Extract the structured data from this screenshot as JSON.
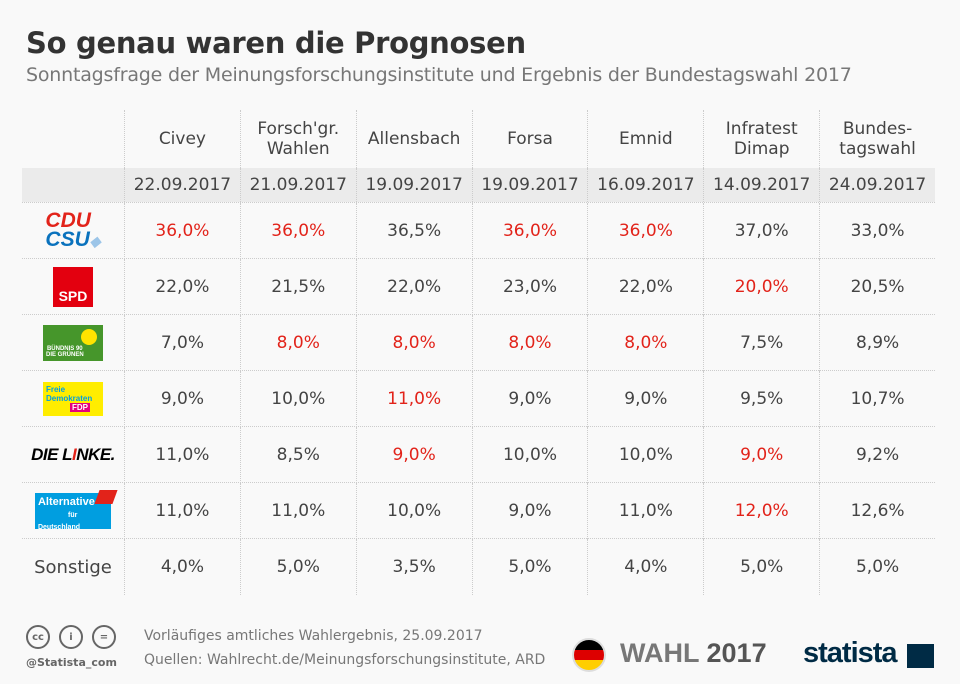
{
  "header": {
    "title": "So genau waren die Prognosen",
    "subtitle": "Sonntagsfrage der Meinungsforschungsinstitute und Ergebnis der Bundestagswahl 2017"
  },
  "chart_data": {
    "type": "table",
    "columns": [
      {
        "name": "Civey",
        "date": "22.09.2017"
      },
      {
        "name": "Forsch'gr. Wahlen",
        "date": "21.09.2017"
      },
      {
        "name": "Allensbach",
        "date": "19.09.2017"
      },
      {
        "name": "Forsa",
        "date": "19.09.2017"
      },
      {
        "name": "Emnid",
        "date": "16.09.2017"
      },
      {
        "name": "Infratest Dimap",
        "date": "14.09.2017"
      },
      {
        "name": "Bundes-tagswahl",
        "date": "24.09.2017"
      }
    ],
    "rows": [
      {
        "party": "CDU CSU",
        "logo": "cdu",
        "values": [
          "36,0%",
          "36,0%",
          "36,5%",
          "36,0%",
          "36,0%",
          "37,0%",
          "33,0%"
        ],
        "highlight": [
          0,
          1,
          3,
          4
        ]
      },
      {
        "party": "SPD",
        "logo": "spd",
        "values": [
          "22,0%",
          "21,5%",
          "22,0%",
          "23,0%",
          "22,0%",
          "20,0%",
          "20,5%"
        ],
        "highlight": [
          5
        ]
      },
      {
        "party": "Bündnis 90 Die Grünen",
        "logo": "gruene",
        "values": [
          "7,0%",
          "8,0%",
          "8,0%",
          "8,0%",
          "8,0%",
          "7,5%",
          "8,9%"
        ],
        "highlight": [
          1,
          2,
          3,
          4
        ]
      },
      {
        "party": "Freie Demokraten FDP",
        "logo": "fdp",
        "values": [
          "9,0%",
          "10,0%",
          "11,0%",
          "9,0%",
          "9,0%",
          "9,5%",
          "10,7%"
        ],
        "highlight": [
          2
        ]
      },
      {
        "party": "DIE LINKE.",
        "logo": "linke",
        "values": [
          "11,0%",
          "8,5%",
          "9,0%",
          "10,0%",
          "10,0%",
          "9,0%",
          "9,2%"
        ],
        "highlight": [
          2,
          5
        ]
      },
      {
        "party": "Alternative für Deutschland",
        "logo": "afd",
        "values": [
          "11,0%",
          "11,0%",
          "10,0%",
          "9,0%",
          "11,0%",
          "12,0%",
          "12,6%"
        ],
        "highlight": [
          5
        ]
      },
      {
        "party": "Sonstige",
        "logo": "",
        "values": [
          "4,0%",
          "5,0%",
          "3,5%",
          "5,0%",
          "4,0%",
          "5,0%",
          "5,0%"
        ],
        "highlight": []
      }
    ],
    "highlight_color": "#e2231a"
  },
  "footer": {
    "handle": "@Statista_com",
    "note": "Vorläufiges amtliches Wahlergebnis, 25.09.2017",
    "sources": "Quellen: Wahlrecht.de/Meinungsforschungsinstitute, ARD",
    "wahl": "WAHL",
    "year": "2017",
    "brand": "statista",
    "cc_icons": [
      "cc-icon",
      "by-icon",
      "nd-icon"
    ]
  }
}
